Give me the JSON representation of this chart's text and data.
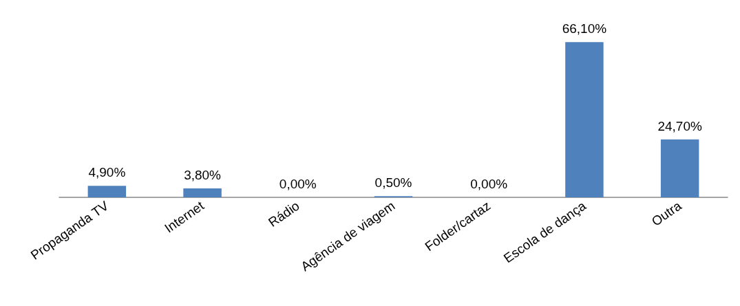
{
  "chart_data": {
    "type": "bar",
    "categories": [
      "Propaganda TV",
      "Internet",
      "Rádio",
      "Agência de viagem",
      "Folder/cartaz",
      "Escola de dança",
      "Outra"
    ],
    "values": [
      4.9,
      3.8,
      0,
      0.5,
      0,
      66.1,
      24.7
    ],
    "value_labels": [
      "4,90%",
      "3,80%",
      "0,00%",
      "0,50%",
      "0,00%",
      "66,10%",
      "24,70%"
    ],
    "color": "#4f81bd",
    "tick_labels": "x"
  }
}
